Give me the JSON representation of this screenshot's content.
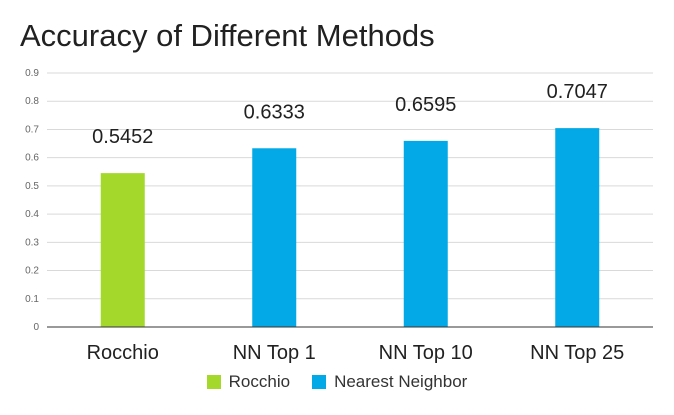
{
  "chart_data": {
    "type": "bar",
    "title": "Accuracy of Different Methods",
    "xlabel": "",
    "ylabel": "",
    "categories": [
      "Rocchio",
      "NN Top 1",
      "NN Top 10",
      "NN Top 25"
    ],
    "series": [
      {
        "name": "Rocchio",
        "color": "#a4d82a",
        "values": [
          0.5452,
          null,
          null,
          null
        ]
      },
      {
        "name": "Nearest Neighbor",
        "color": "#03a9e6",
        "values": [
          null,
          0.6333,
          0.6595,
          0.7047
        ]
      }
    ],
    "data_labels": [
      "0.5452",
      "0.6333",
      "0.6595",
      "0.7047"
    ],
    "yticks": [
      "0",
      "0.1",
      "0.2",
      "0.3",
      "0.4",
      "0.5",
      "0.6",
      "0.7",
      "0.8",
      "0.9"
    ],
    "ylim": [
      0,
      0.9
    ],
    "grid": true,
    "legend_position": "bottom"
  }
}
